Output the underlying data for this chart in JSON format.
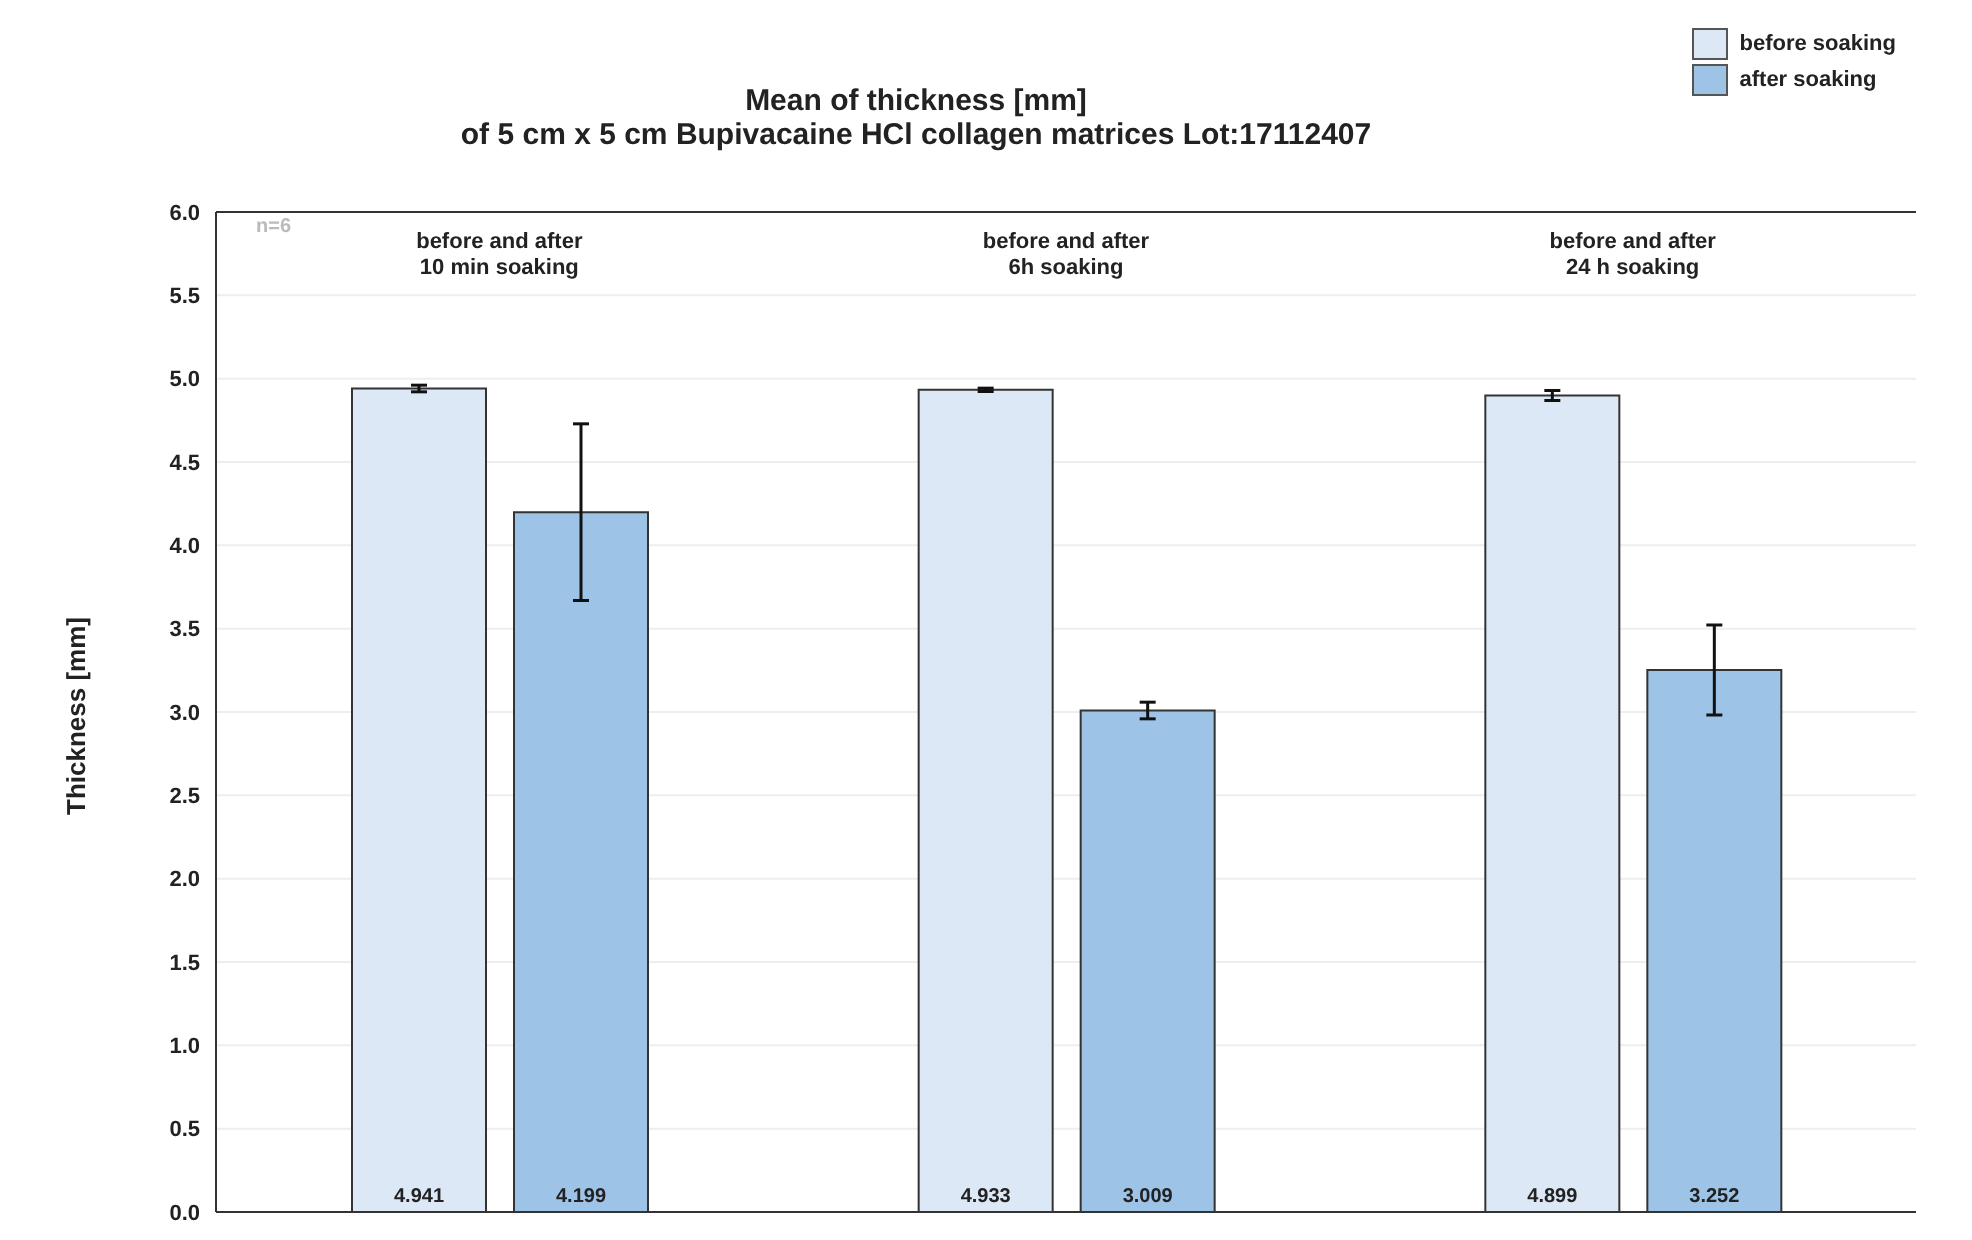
{
  "chart_data": {
    "type": "bar",
    "title": "Mean of thickness [mm]",
    "subtitle": "of 5 cm x 5 cm  Bupivacaine HCl collagen matrices Lot:17112407",
    "ylabel": "Thickness [mm]",
    "categories": [
      "before and after\n10 min soaking",
      "before and after\n6h soaking",
      "before and after\n24 h soaking"
    ],
    "series": [
      {
        "name": "before soaking",
        "color": "#dce8f6",
        "values": [
          4.941,
          4.933,
          4.899
        ],
        "errors": [
          0.02,
          0.01,
          0.03
        ]
      },
      {
        "name": "after soaking",
        "color": "#9dc3e6",
        "values": [
          4.199,
          3.009,
          3.252
        ],
        "errors": [
          0.53,
          0.05,
          0.27
        ]
      }
    ],
    "ylim": [
      0,
      6
    ],
    "yticks": [
      {
        "value": 0,
        "label": "0.0"
      },
      {
        "value": 0.5,
        "label": "0.5"
      },
      {
        "value": 1,
        "label": "1.0"
      },
      {
        "value": 1.5,
        "label": "1.5"
      },
      {
        "value": 2,
        "label": "2.0"
      },
      {
        "value": 2.5,
        "label": "2.5"
      },
      {
        "value": 3,
        "label": "3.0"
      },
      {
        "value": 3.5,
        "label": "3.5"
      },
      {
        "value": 4,
        "label": "4.0"
      },
      {
        "value": 4.5,
        "label": "4.5"
      },
      {
        "value": 5,
        "label": "5.0"
      },
      {
        "value": 5.5,
        "label": "5.5"
      },
      {
        "value": 6,
        "label": "6.0"
      }
    ],
    "grid": "y",
    "legend": "top right",
    "data_labels": true,
    "annotations": [
      "n=6"
    ]
  }
}
